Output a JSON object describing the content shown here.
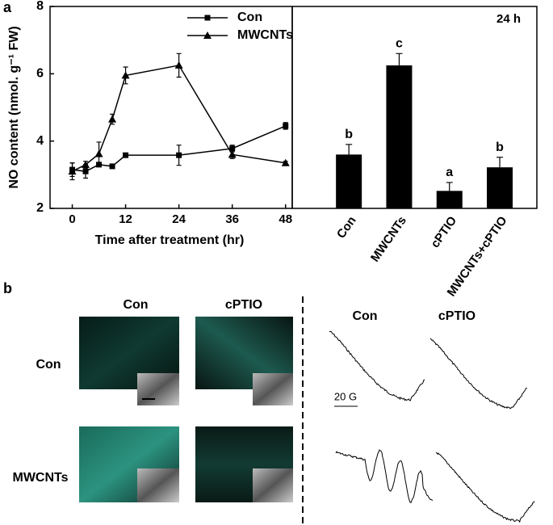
{
  "panel_labels": [
    "a",
    "b"
  ],
  "chart_data": [
    {
      "type": "line",
      "x_label": "Time after treatment (hr)",
      "y_label": "NO content (nmol. g⁻¹ FW)",
      "x": [
        0,
        3,
        6,
        9,
        12,
        24,
        36,
        48
      ],
      "series": [
        {
          "name": "Con",
          "color": "#000000",
          "marker": "square",
          "values": [
            3.15,
            3.1,
            3.3,
            3.25,
            3.58,
            3.58,
            3.78,
            4.45
          ],
          "errors": [
            0.2,
            0.2,
            0.05,
            0.05,
            0.05,
            0.3,
            0.1,
            0.1
          ]
        },
        {
          "name": "MWCNTs",
          "color": "#000000",
          "marker": "triangle",
          "values": [
            3.1,
            3.3,
            3.62,
            4.65,
            5.95,
            6.25,
            3.6,
            3.35
          ],
          "errors": [
            0.25,
            0.1,
            0.35,
            0.15,
            0.25,
            0.35,
            0.12,
            0.05
          ]
        }
      ],
      "xlim": [
        -5,
        49.5
      ],
      "ylim": [
        2,
        8
      ],
      "xticks": [
        0,
        12,
        24,
        36,
        48
      ],
      "yticks": [
        2,
        4,
        6,
        8
      ],
      "legend": "upper right"
    },
    {
      "type": "bar",
      "title": "24 h",
      "categories": [
        "Con",
        "MWCNTs",
        "cPTIO",
        "MWCNTs+cPTIO"
      ],
      "values": [
        3.6,
        6.25,
        2.52,
        3.22
      ],
      "errors": [
        0.3,
        0.35,
        0.25,
        0.3
      ],
      "annotations": [
        "b",
        "c",
        "a",
        "b"
      ],
      "color": "#000000",
      "ylim": [
        2,
        8
      ]
    }
  ],
  "panel_b": {
    "column_labels": [
      "Con",
      "cPTIO"
    ],
    "row_labels": [
      "Con",
      "MWCNTs"
    ],
    "esr_column_labels": [
      "Con",
      "cPTIO"
    ],
    "scale_label": "20 G"
  }
}
